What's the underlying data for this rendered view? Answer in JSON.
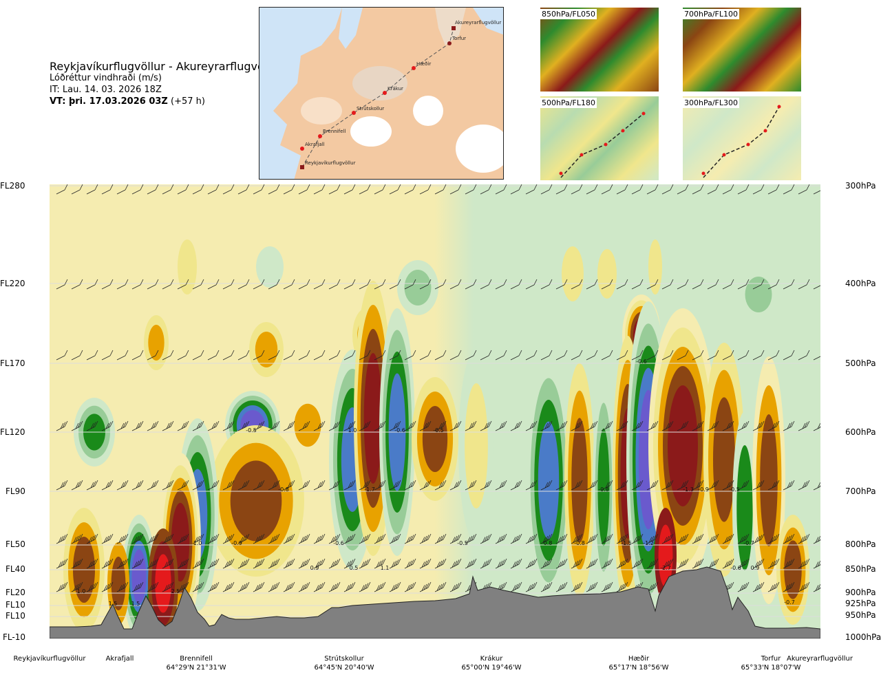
{
  "header": {
    "title": "Reykjavíkurflugvöllur - Akureyrarflugvöllur",
    "subtitle": "Lóðréttur vindhraði (m/s)",
    "issue_time": "IT: Lau. 14. 03. 2026 18Z",
    "valid_time_bold": "VT: þri. 17.03.2026 03Z",
    "valid_offset": " (+57 h)"
  },
  "map_labels": [
    "Akureyrarflugvöllur",
    "Torfur",
    "Hæðir",
    "Krákur",
    "Strútskollur",
    "Brennifell",
    "Akrafjall",
    "Reykjavíkurflugvöllur"
  ],
  "thumbnails": [
    {
      "label": "850hPa/FL050"
    },
    {
      "label": "700hPa/FL100"
    },
    {
      "label": "500hPa/FL180"
    },
    {
      "label": "300hPa/FL300"
    }
  ],
  "colors": {
    "brown": "#8b4513",
    "darkred": "#8b1a1a",
    "red": "#e41a1c",
    "orange": "#e8a200",
    "yellow": "#f0e68c",
    "paleyellow": "#f5ecb0",
    "palegreen": "#cfe8c8",
    "midgreen": "#98cc98",
    "green": "#1a8a1a",
    "blue": "#4a7bc8",
    "violet": "#6a5acd",
    "terrain": "#808080"
  },
  "chart_data": {
    "type": "heatmap",
    "title": "Lóðréttur vindhraði (m/s)",
    "left_axis": [
      "FL280",
      "FL220",
      "FL170",
      "FL120",
      "FL90",
      "FL50",
      "FL40",
      "FL20",
      "FL10",
      "FL10",
      "FL-10"
    ],
    "right_axis": [
      "300hPa",
      "400hPa",
      "500hPa",
      "600hPa",
      "700hPa",
      "800hPa",
      "850hPa",
      "900hPa",
      "925hPa",
      "950hPa",
      "1000hPa"
    ],
    "x_locations": [
      {
        "name": "Reykjavíkurflugvöllur",
        "coord": ""
      },
      {
        "name": "Akrafjall",
        "coord": ""
      },
      {
        "name": "Brennifell",
        "coord": "64°29'N 21°31'W"
      },
      {
        "name": "Strútskollur",
        "coord": "64°45'N 20°40'W"
      },
      {
        "name": "Krákur",
        "coord": "65°00'N 19°46'W"
      },
      {
        "name": "Hæðir",
        "coord": "65°17'N 18°56'W"
      },
      {
        "name": "Torfur",
        "coord": "65°33'N 18°07'W"
      },
      {
        "name": "Akureyrarflugvöllur",
        "coord": ""
      }
    ],
    "value_labels": [
      "1.0",
      "1.5",
      "1.5",
      "2.5",
      "1.0",
      "-0.9",
      "-0.8",
      "-0.5",
      "1.0",
      "-0.6",
      "-0.5",
      "-1.7",
      "0.9",
      "0.5",
      "-0.6",
      "1.1",
      "-0.5",
      "0.8",
      "-0.8",
      "-0.8",
      "-1.5",
      "-1.2",
      "-0.6",
      "-1.3",
      "-0.9",
      "-0.5",
      "-2.7",
      "0.9",
      "-0.6",
      "-0.7",
      "-0.7"
    ]
  }
}
